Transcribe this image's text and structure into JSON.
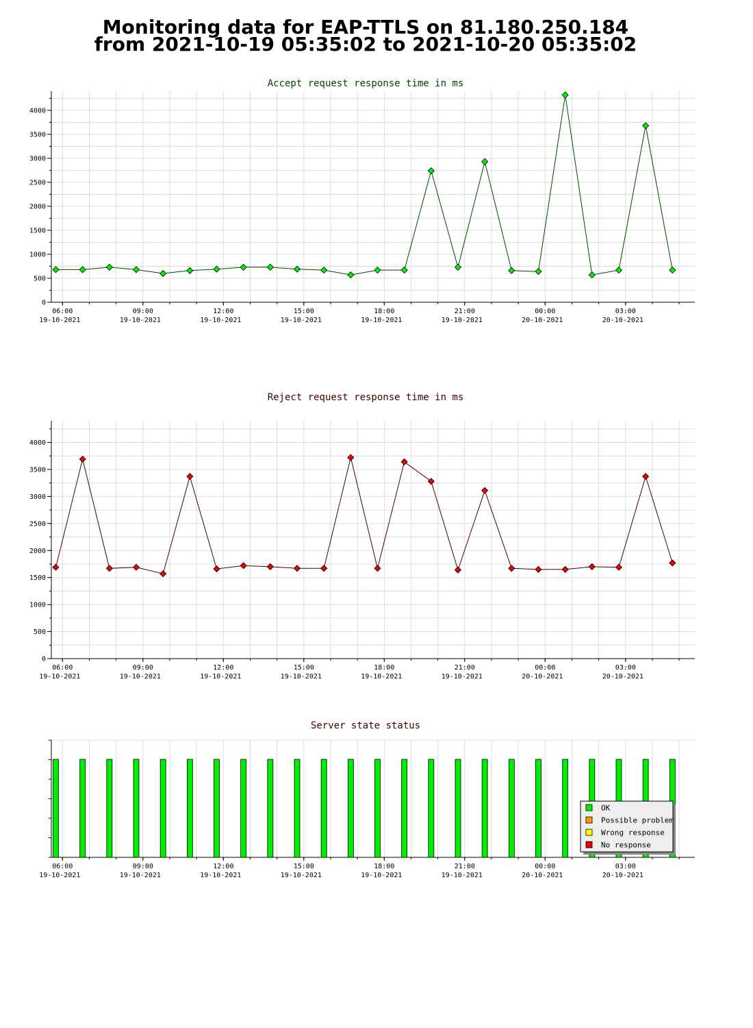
{
  "header": {
    "title_line1": "Monitoring data for EAP-TTLS on 81.180.250.184",
    "title_line2": "from 2021-10-19 05:35:02 to 2021-10-20 05:35:02"
  },
  "x_ticks": [
    {
      "time": "06:00",
      "date": "19-10-2021"
    },
    {
      "time": "09:00",
      "date": "19-10-2021"
    },
    {
      "time": "12:00",
      "date": "19-10-2021"
    },
    {
      "time": "15:00",
      "date": "19-10-2021"
    },
    {
      "time": "18:00",
      "date": "19-10-2021"
    },
    {
      "time": "21:00",
      "date": "19-10-2021"
    },
    {
      "time": "00:00",
      "date": "20-10-2021"
    },
    {
      "time": "03:00",
      "date": "20-10-2021"
    }
  ],
  "legend": {
    "items": [
      {
        "label": "OK",
        "color": "#00ee00"
      },
      {
        "label": "Possible problem",
        "color": "#ff9900"
      },
      {
        "label": "Wrong response",
        "color": "#ffff00"
      },
      {
        "label": "No response",
        "color": "#ee0000"
      }
    ]
  },
  "chart_data": [
    {
      "type": "line",
      "title": "Accept request response time in ms",
      "title_color": "#004400",
      "line_color": "#004400",
      "marker_color": "#00ee00",
      "ylim": [
        0,
        4400
      ],
      "yticks": [
        0,
        500,
        1000,
        1500,
        2000,
        2500,
        3000,
        3500,
        4000
      ],
      "x": [
        "2021-10-19 05:45",
        "2021-10-19 06:45",
        "2021-10-19 07:45",
        "2021-10-19 08:45",
        "2021-10-19 09:45",
        "2021-10-19 10:45",
        "2021-10-19 11:45",
        "2021-10-19 12:45",
        "2021-10-19 13:45",
        "2021-10-19 14:45",
        "2021-10-19 15:45",
        "2021-10-19 16:45",
        "2021-10-19 17:45",
        "2021-10-19 18:45",
        "2021-10-19 19:45",
        "2021-10-19 20:45",
        "2021-10-19 21:45",
        "2021-10-19 22:45",
        "2021-10-19 23:45",
        "2021-10-20 00:45",
        "2021-10-20 01:45",
        "2021-10-20 02:45",
        "2021-10-20 03:45",
        "2021-10-20 04:45"
      ],
      "values": [
        680,
        680,
        730,
        680,
        600,
        660,
        690,
        730,
        730,
        690,
        670,
        570,
        670,
        670,
        2740,
        730,
        2930,
        660,
        640,
        4320,
        570,
        670,
        3680,
        670
      ]
    },
    {
      "type": "line",
      "title": "Reject request response time in ms",
      "title_color": "#440000",
      "line_color": "#440000",
      "marker_color": "#ee0000",
      "ylim": [
        0,
        4400
      ],
      "yticks": [
        0,
        500,
        1000,
        1500,
        2000,
        2500,
        3000,
        3500,
        4000
      ],
      "x": [
        "2021-10-19 05:45",
        "2021-10-19 06:45",
        "2021-10-19 07:45",
        "2021-10-19 08:45",
        "2021-10-19 09:45",
        "2021-10-19 10:45",
        "2021-10-19 11:45",
        "2021-10-19 12:45",
        "2021-10-19 13:45",
        "2021-10-19 14:45",
        "2021-10-19 15:45",
        "2021-10-19 16:45",
        "2021-10-19 17:45",
        "2021-10-19 18:45",
        "2021-10-19 19:45",
        "2021-10-19 20:45",
        "2021-10-19 21:45",
        "2021-10-19 22:45",
        "2021-10-19 23:45",
        "2021-10-20 00:45",
        "2021-10-20 01:45",
        "2021-10-20 02:45",
        "2021-10-20 03:45",
        "2021-10-20 04:45"
      ],
      "values": [
        1690,
        3690,
        1670,
        1690,
        1570,
        3370,
        1660,
        1720,
        1700,
        1670,
        1670,
        3720,
        1670,
        3640,
        3280,
        1640,
        3110,
        1670,
        1650,
        1650,
        1700,
        1690,
        3370,
        1770
      ]
    },
    {
      "type": "bar",
      "title": "Server state status",
      "title_color": "#440000",
      "x": [
        "2021-10-19 05:45",
        "2021-10-19 06:45",
        "2021-10-19 07:45",
        "2021-10-19 08:45",
        "2021-10-19 09:45",
        "2021-10-19 10:45",
        "2021-10-19 11:45",
        "2021-10-19 12:45",
        "2021-10-19 13:45",
        "2021-10-19 14:45",
        "2021-10-19 15:45",
        "2021-10-19 16:45",
        "2021-10-19 17:45",
        "2021-10-19 18:45",
        "2021-10-19 19:45",
        "2021-10-19 20:45",
        "2021-10-19 21:45",
        "2021-10-19 22:45",
        "2021-10-19 23:45",
        "2021-10-20 00:45",
        "2021-10-20 01:45",
        "2021-10-20 02:45",
        "2021-10-20 03:45",
        "2021-10-20 04:45"
      ],
      "states": [
        "OK",
        "OK",
        "OK",
        "OK",
        "OK",
        "OK",
        "OK",
        "OK",
        "OK",
        "OK",
        "OK",
        "OK",
        "OK",
        "OK",
        "OK",
        "OK",
        "OK",
        "OK",
        "OK",
        "OK",
        "OK",
        "OK",
        "OK",
        "OK"
      ],
      "legend_position": "bottom-right"
    }
  ]
}
